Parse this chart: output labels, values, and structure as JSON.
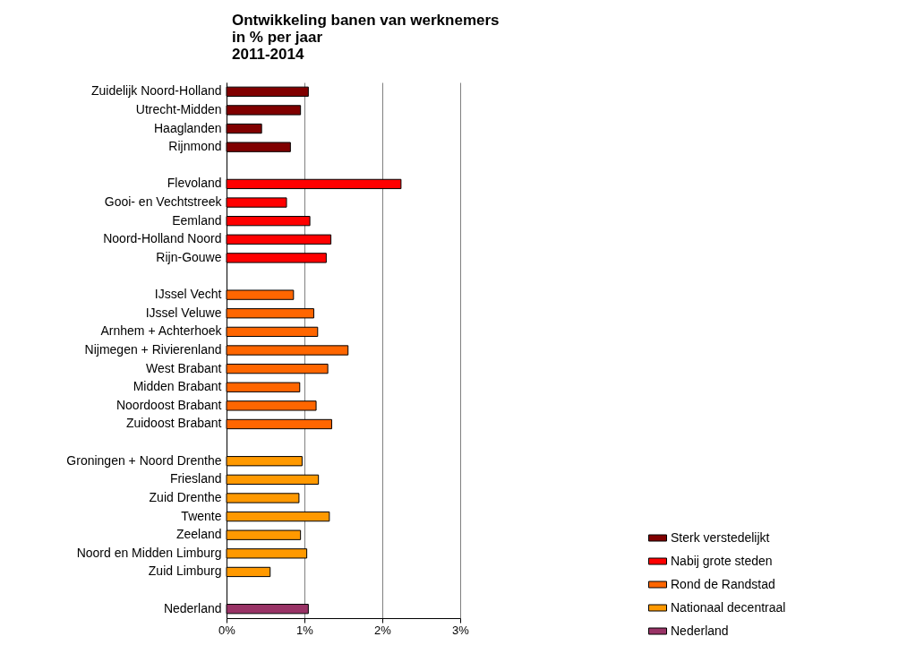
{
  "chart_data": {
    "type": "bar",
    "orientation": "horizontal",
    "title": [
      "Ontwikkeling banen van werknemers",
      "in % per jaar",
      "2011-2014"
    ],
    "categories": [
      "Zuidelijk Noord-Holland",
      "Utrecht-Midden",
      "Haaglanden",
      "Rijnmond",
      null,
      "Flevoland",
      "Gooi- en Vechtstreek",
      "Eemland",
      "Noord-Holland Noord",
      "Rijn-Gouwe",
      null,
      "IJssel Vecht",
      "IJssel Veluwe",
      "Arnhem + Achterhoek",
      "Nijmegen + Rivierenland",
      "West Brabant",
      "Midden Brabant",
      "Noordoost Brabant",
      "Zuidoost Brabant",
      null,
      "Groningen + Noord Drenthe",
      "Friesland",
      "Zuid Drenthe",
      "Twente",
      "Zeeland",
      "Noord en Midden Limburg",
      "Zuid Limburg",
      null,
      "Nederland"
    ],
    "series": [
      {
        "name": "Sterk verstedelijkt",
        "color": "#800000",
        "values": [
          1.05,
          0.95,
          0.45,
          0.82,
          null,
          null,
          null,
          null,
          null,
          null,
          null,
          null,
          null,
          null,
          null,
          null,
          null,
          null,
          null,
          null,
          null,
          null,
          null,
          null,
          null,
          null,
          null,
          null,
          null
        ]
      },
      {
        "name": "Nabij grote steden",
        "color": "#ff0000",
        "values": [
          null,
          null,
          null,
          null,
          null,
          2.24,
          0.77,
          1.07,
          1.34,
          1.28,
          null,
          null,
          null,
          null,
          null,
          null,
          null,
          null,
          null,
          null,
          null,
          null,
          null,
          null,
          null,
          null,
          null,
          null,
          null
        ]
      },
      {
        "name": "Rond de Randstad",
        "color": "#ff6600",
        "values": [
          null,
          null,
          null,
          null,
          null,
          null,
          null,
          null,
          null,
          null,
          null,
          0.86,
          1.12,
          1.17,
          1.56,
          1.3,
          0.94,
          1.15,
          1.35,
          null,
          null,
          null,
          null,
          null,
          null,
          null,
          null,
          null,
          null
        ]
      },
      {
        "name": "Nationaal decentraal",
        "color": "#ff9900",
        "values": [
          null,
          null,
          null,
          null,
          null,
          null,
          null,
          null,
          null,
          null,
          null,
          null,
          null,
          null,
          null,
          null,
          null,
          null,
          null,
          null,
          0.97,
          1.18,
          0.93,
          1.32,
          0.95,
          1.03,
          0.56,
          null,
          null
        ]
      },
      {
        "name": "Nederland",
        "color": "#993366",
        "values": [
          null,
          null,
          null,
          null,
          null,
          null,
          null,
          null,
          null,
          null,
          null,
          null,
          null,
          null,
          null,
          null,
          null,
          null,
          null,
          null,
          null,
          null,
          null,
          null,
          null,
          null,
          null,
          null,
          1.05
        ]
      }
    ],
    "xlim": [
      0,
      3
    ],
    "xticks": [
      {
        "value": 0,
        "label": "0%"
      },
      {
        "value": 1,
        "label": "1%"
      },
      {
        "value": 2,
        "label": "2%"
      },
      {
        "value": 3,
        "label": "3%"
      }
    ],
    "grid": "x",
    "legend": "bottom right"
  }
}
